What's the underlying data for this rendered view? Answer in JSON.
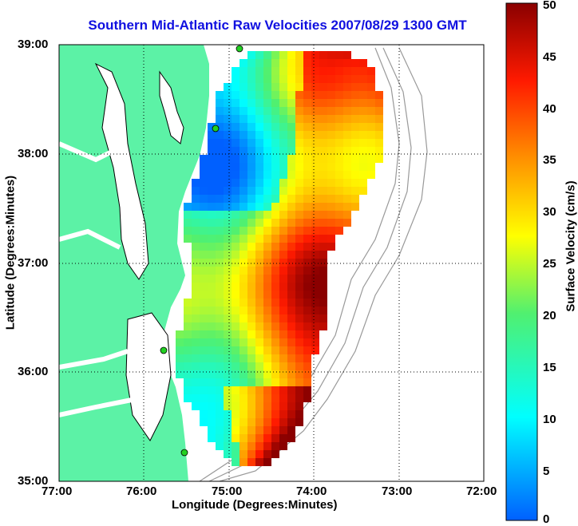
{
  "title": "Southern Mid-Atlantic Raw Velocities 2007/08/29 1300 GMT",
  "x_axis": {
    "label": "Longitude (Degrees:Minutes)",
    "ticks": [
      "77:00",
      "76:00",
      "75:00",
      "74:00",
      "73:00",
      "72:00"
    ]
  },
  "y_axis": {
    "label": "Latitude (Degrees:Minutes)",
    "ticks": [
      "39:00",
      "38:00",
      "37:00",
      "36:00",
      "35:00"
    ]
  },
  "colorbar": {
    "label": "Surface Velocity (cm/s)",
    "ticks": [
      "50",
      "45",
      "40",
      "35",
      "30",
      "25",
      "20",
      "15",
      "10",
      "5",
      "0"
    ],
    "min": 0,
    "max": 50
  },
  "colors": {
    "land": "#5cf2a6",
    "title": "#1010e0",
    "arrows": "#000000"
  },
  "chart_data": {
    "type": "heatmap",
    "title": "Southern Mid-Atlantic Raw Velocities 2007/08/29 1300 GMT",
    "xlabel": "Longitude (Degrees:Minutes)",
    "ylabel": "Latitude (Degrees:Minutes)",
    "xlim": [
      -77,
      -72
    ],
    "ylim": [
      35,
      39
    ],
    "value_label": "Surface Velocity (cm/s)",
    "value_range": [
      0,
      50
    ],
    "grid": true
  }
}
